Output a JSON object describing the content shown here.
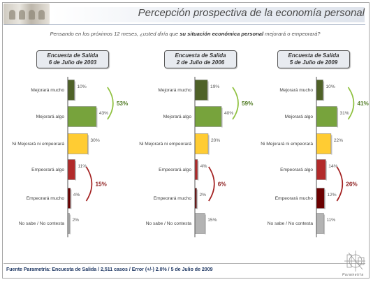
{
  "header": {
    "title": "Percepción prospectiva de la economía personal"
  },
  "question": {
    "before": "Pensando en los próximos 12 meses, ¿usted diría que ",
    "emphasis": "su situación económica personal",
    "after": " mejorará o empeorará?"
  },
  "footer": {
    "source": "Fuente Parametría: Encuesta de Salida / 2,511 casos / Error (+/-) 2.0% / 5 de Julio de 2009",
    "logo_text": "Parametría"
  },
  "colors": {
    "mejorara_mucho": "#4f6228",
    "mejorara_algo": "#77a33c",
    "ni_mejorara": "#ffcc33",
    "empeorara_algo": "#b22a2a",
    "empeorara_mucho": "#6b0000",
    "no_sabe": "#b3b3b3",
    "bracket_green": "#8fc13f",
    "bracket_red": "#a32020",
    "sum_green": "#4f7a22",
    "sum_red": "#8b1a1a"
  },
  "chart_data": [
    {
      "type": "bar",
      "survey_line1": "Encuesta de Salida",
      "survey_line2": "6 de Julio de 2003",
      "categories": [
        "Mejorará mucho",
        "Mejorará algo",
        "Ni Mejorará ni empeorará",
        "Empeorará algo",
        "Empeorará mucho",
        "No sabe / No contesta"
      ],
      "values": [
        10,
        43,
        30,
        11,
        4,
        2
      ],
      "value_labels": [
        "10%",
        "43%",
        "30%",
        "11%",
        "4%",
        "2%"
      ],
      "positive_total": "53%",
      "negative_total": "15%"
    },
    {
      "type": "bar",
      "survey_line1": "Encuesta de Salida",
      "survey_line2": "2 de Julio de 2006",
      "categories": [
        "Mejorará mucho",
        "Mejorará algo",
        "Ni Mejorará ni empeorará",
        "Empeorará algo",
        "Empeorará mucho",
        "No sabe / No contesta"
      ],
      "values": [
        19,
        40,
        20,
        4,
        2,
        15
      ],
      "value_labels": [
        "19%",
        "40%",
        "20%",
        "4%",
        "2%",
        "15%"
      ],
      "positive_total": "59%",
      "negative_total": "6%"
    },
    {
      "type": "bar",
      "survey_line1": "Encuesta de Salida",
      "survey_line2": "5 de Julio de 2009",
      "categories": [
        "Mejorará mucho",
        "Mejorará algo",
        "Ni Mejorará ni empeorará",
        "Empeorará algo",
        "Empeorará mucho",
        "No sabe / No contesta"
      ],
      "values": [
        10,
        31,
        22,
        14,
        12,
        11
      ],
      "value_labels": [
        "10%",
        "31%",
        "22%",
        "14%",
        "12%",
        "11%"
      ],
      "positive_total": "41%",
      "negative_total": "26%"
    }
  ]
}
